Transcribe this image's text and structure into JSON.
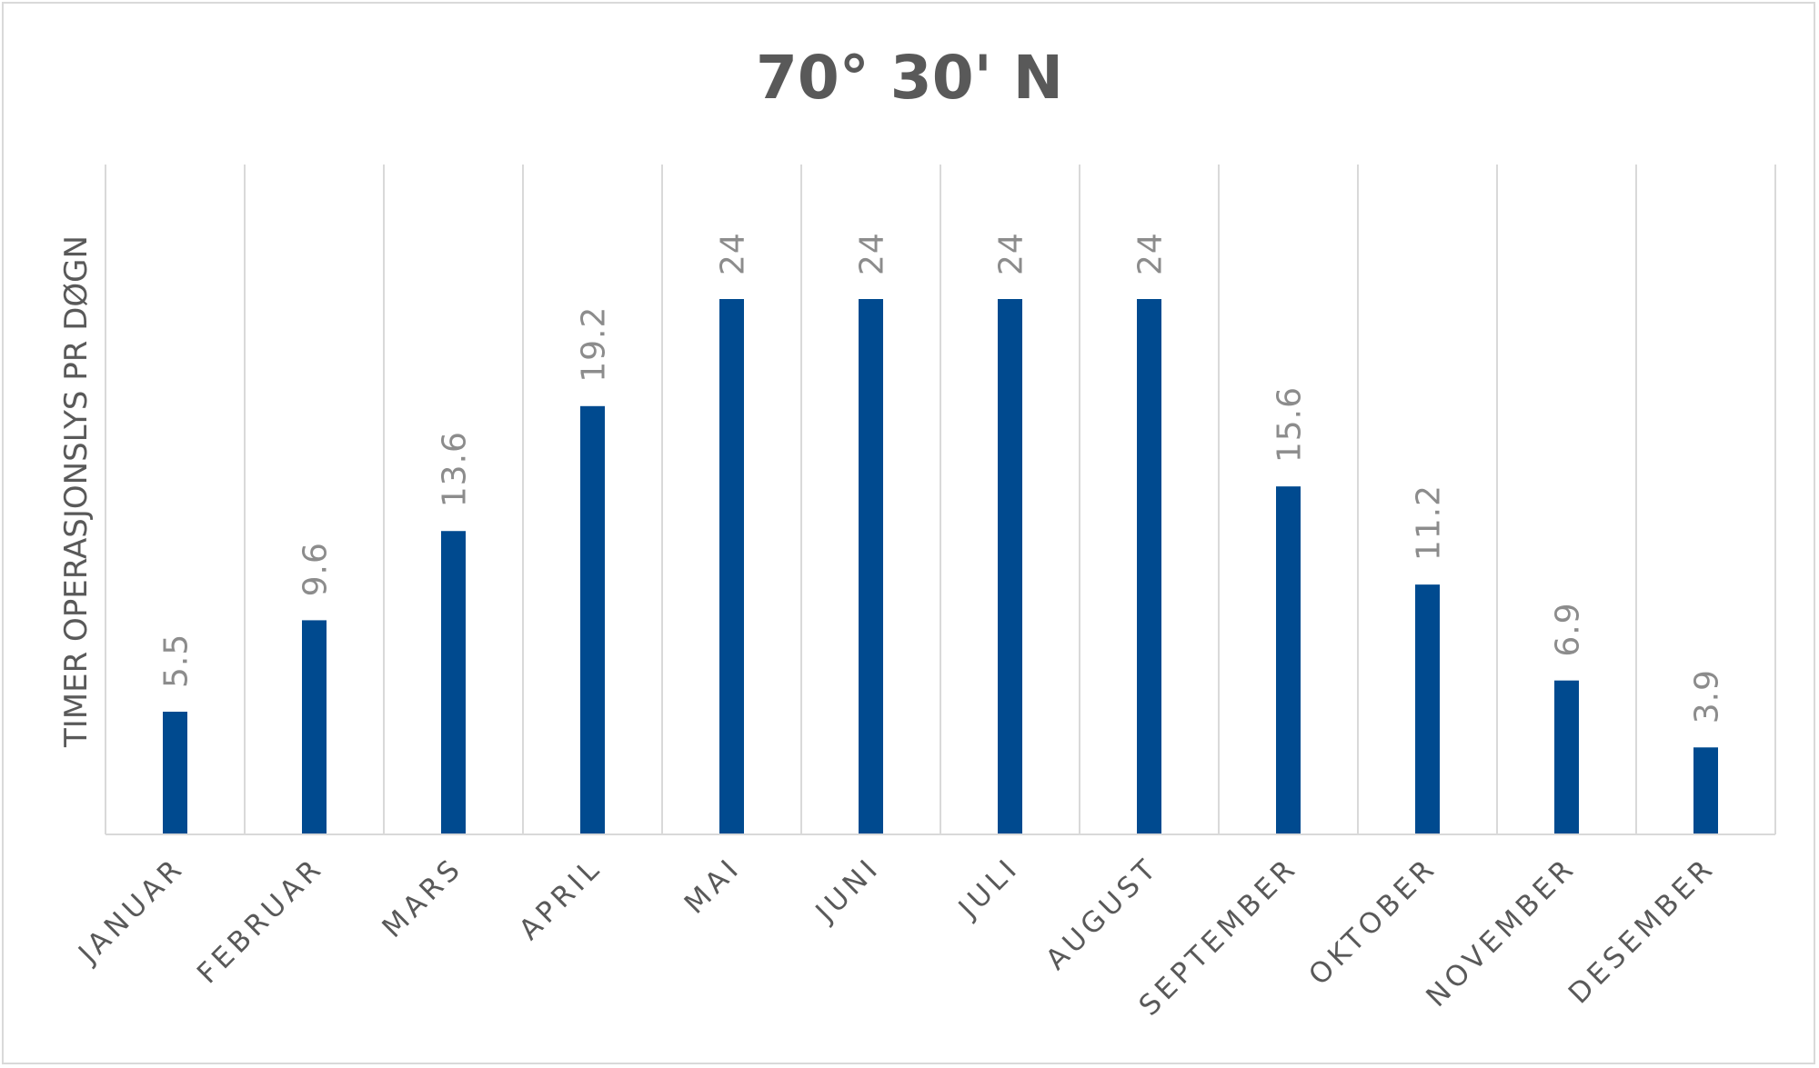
{
  "chart_data": {
    "type": "bar",
    "title": "70° 30' N",
    "xlabel": "",
    "ylabel": "TIMER OPERASJONSLYS PR DØGN",
    "categories": [
      "JANUAR",
      "FEBRUAR",
      "MARS",
      "APRIL",
      "MAI",
      "JUNI",
      "JULI",
      "AUGUST",
      "SEPTEMBER",
      "OKTOBER",
      "NOVEMBER",
      "DESEMBER"
    ],
    "values": [
      5.5,
      9.6,
      13.6,
      19.2,
      24,
      24,
      24,
      24,
      15.6,
      11.2,
      6.9,
      3.9
    ],
    "data_labels": [
      "5.5",
      "9.6",
      "13.6",
      "19.2",
      "24",
      "24",
      "24",
      "24",
      "15.6",
      "11.2",
      "6.9",
      "3.9"
    ],
    "ylim": [
      0,
      24
    ],
    "grid": "vertical",
    "legend": "none",
    "bar_color": "#004a8f",
    "grid_color": "#d9d9d9"
  }
}
